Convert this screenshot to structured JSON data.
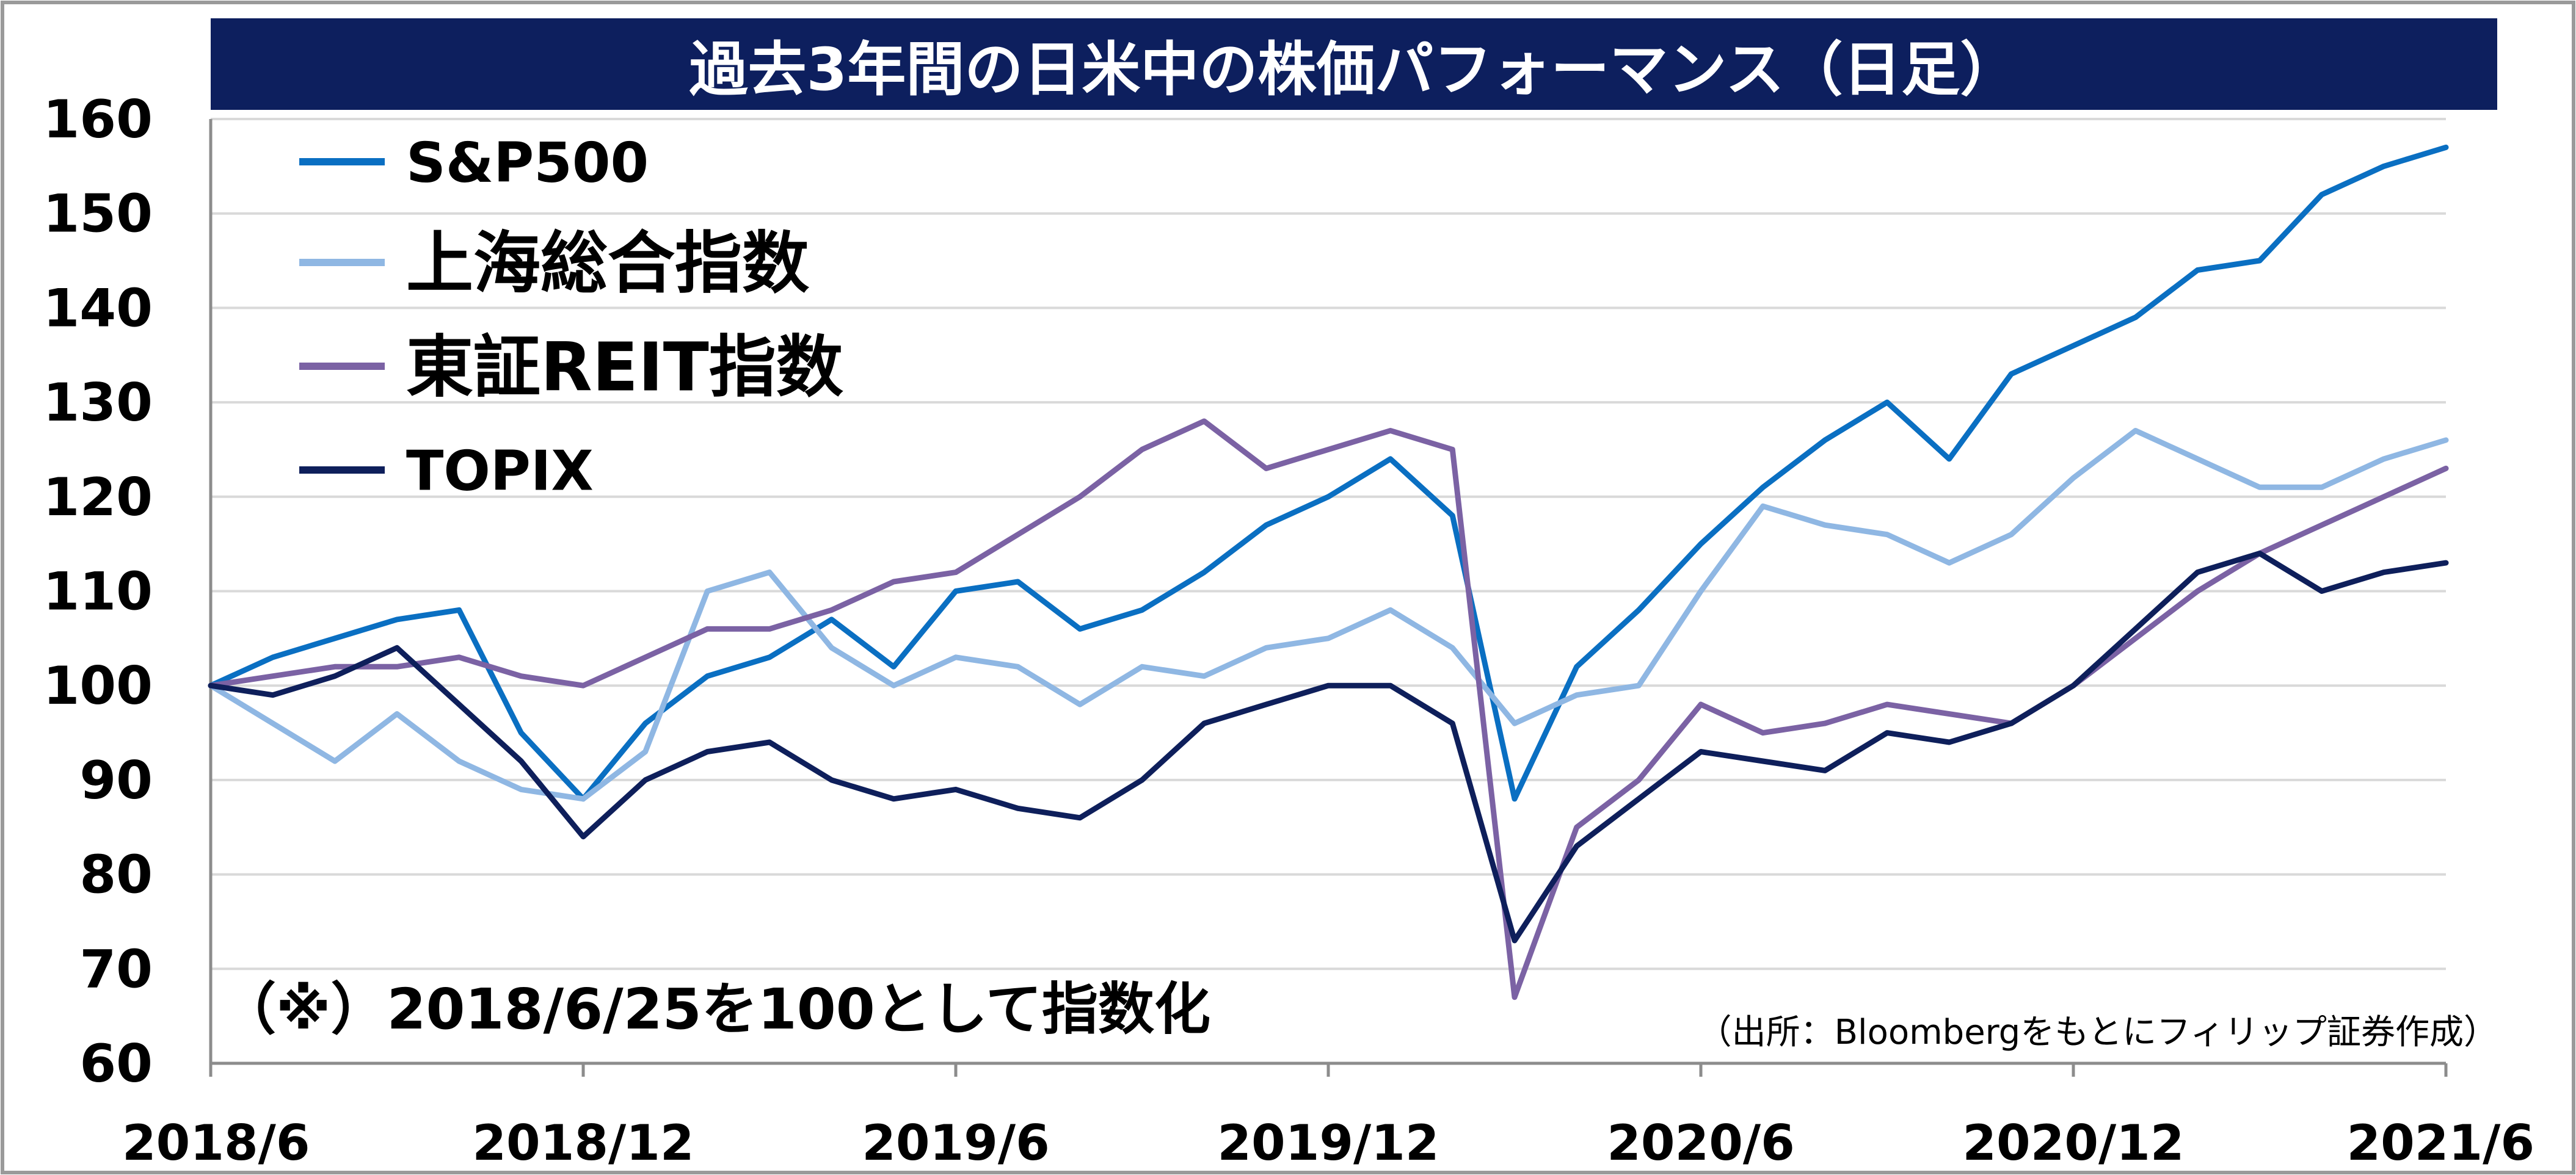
{
  "chart_data": {
    "type": "line",
    "title": "過去3年間の日米中の株価パフォーマンス（日足）",
    "xlabel": "",
    "ylabel": "",
    "x_ticks": [
      "2018/6",
      "2018/12",
      "2019/6",
      "2019/12",
      "2020/6",
      "2020/12",
      "2021/6"
    ],
    "y_ticks": [
      60,
      70,
      80,
      90,
      100,
      110,
      120,
      130,
      140,
      150,
      160
    ],
    "ylim": [
      60,
      160
    ],
    "xlim": [
      "2018/6",
      "2021/6"
    ],
    "grid": "horizontal",
    "legend_position": "top-left",
    "note": "（※）2018/6/25を100として指数化",
    "source": "（出所：Bloombergをもとにフィリップ証券作成）",
    "x": [
      "2018/6",
      "2018/7",
      "2018/8",
      "2018/9",
      "2018/10",
      "2018/11",
      "2018/12",
      "2019/1",
      "2019/2",
      "2019/3",
      "2019/4",
      "2019/5",
      "2019/6",
      "2019/7",
      "2019/8",
      "2019/9",
      "2019/10",
      "2019/11",
      "2019/12",
      "2020/1",
      "2020/2",
      "2020/3",
      "2020/4",
      "2020/5",
      "2020/6",
      "2020/7",
      "2020/8",
      "2020/9",
      "2020/10",
      "2020/11",
      "2020/12",
      "2021/1",
      "2021/2",
      "2021/3",
      "2021/4",
      "2021/5",
      "2021/6"
    ],
    "series": [
      {
        "name": "S&P500",
        "color": "#0a6fc2",
        "values": [
          100,
          103,
          105,
          107,
          108,
          95,
          88,
          96,
          101,
          103,
          107,
          102,
          110,
          111,
          106,
          108,
          112,
          117,
          120,
          124,
          118,
          88,
          102,
          108,
          115,
          121,
          126,
          130,
          124,
          133,
          136,
          139,
          144,
          145,
          152,
          155,
          157
        ]
      },
      {
        "name": "上海総合指数",
        "color": "#8fb7e3",
        "values": [
          100,
          96,
          92,
          97,
          92,
          89,
          88,
          93,
          110,
          112,
          104,
          100,
          103,
          102,
          98,
          102,
          101,
          104,
          105,
          108,
          104,
          96,
          99,
          100,
          110,
          119,
          117,
          116,
          113,
          116,
          122,
          127,
          124,
          121,
          121,
          124,
          126
        ]
      },
      {
        "name": "東証REIT指数",
        "color": "#7b62a4",
        "values": [
          100,
          101,
          102,
          102,
          103,
          101,
          100,
          103,
          106,
          106,
          108,
          111,
          112,
          116,
          120,
          125,
          128,
          123,
          125,
          127,
          125,
          67,
          85,
          90,
          98,
          95,
          96,
          98,
          97,
          96,
          100,
          105,
          110,
          114,
          117,
          120,
          123
        ]
      },
      {
        "name": "TOPIX",
        "color": "#0e1f5b",
        "values": [
          100,
          99,
          101,
          104,
          98,
          92,
          84,
          90,
          93,
          94,
          90,
          88,
          89,
          87,
          86,
          90,
          96,
          98,
          100,
          100,
          96,
          73,
          83,
          88,
          93,
          92,
          91,
          95,
          94,
          96,
          100,
          106,
          112,
          114,
          110,
          112,
          113
        ]
      }
    ]
  }
}
